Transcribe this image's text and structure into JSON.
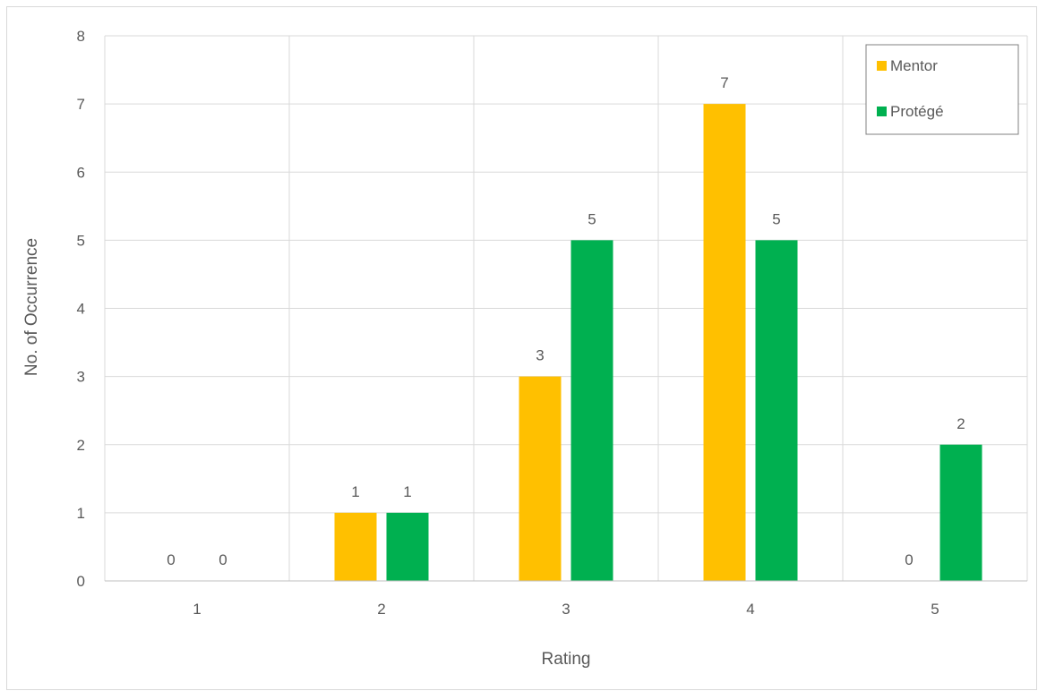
{
  "chart_data": {
    "type": "bar",
    "categories": [
      "1",
      "2",
      "3",
      "4",
      "5"
    ],
    "series": [
      {
        "name": "Mentor",
        "values": [
          0,
          1,
          3,
          7,
          0
        ],
        "color": "#FFC000"
      },
      {
        "name": "Protégé",
        "values": [
          0,
          1,
          5,
          5,
          2
        ],
        "color": "#00B050"
      }
    ],
    "xlabel": "Rating",
    "ylabel": "No. of Occurrence",
    "ylim": [
      0,
      8
    ],
    "yticks": [
      0,
      1,
      2,
      3,
      4,
      5,
      6,
      7,
      8
    ],
    "grid": true,
    "legend_position": "top-right",
    "data_labels": true
  }
}
